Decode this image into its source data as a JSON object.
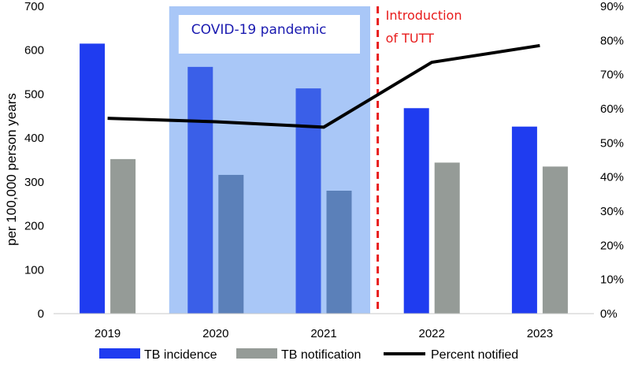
{
  "chart_data": {
    "type": "bar+line",
    "categories": [
      "2019",
      "2020",
      "2021",
      "2022",
      "2023"
    ],
    "series": [
      {
        "name": "TB incidence",
        "kind": "bar",
        "axis": "left",
        "color": "#1f3cf0",
        "values": [
          615,
          562,
          513,
          468,
          426
        ]
      },
      {
        "name": "TB notification",
        "kind": "bar",
        "axis": "left",
        "color": "#959b97",
        "values": [
          352,
          316,
          280,
          344,
          335
        ]
      },
      {
        "name": "Percent notified",
        "kind": "line",
        "axis": "right",
        "color": "#000000",
        "values": [
          57.2,
          56.2,
          54.6,
          73.6,
          78.5
        ]
      }
    ],
    "ylabel": "per 100,000 person years",
    "ylim": [
      0,
      700
    ],
    "yticks": [
      "0",
      "100",
      "200",
      "300",
      "400",
      "500",
      "600",
      "700"
    ],
    "y2lim": [
      0,
      90
    ],
    "y2ticks": [
      "0%",
      "10%",
      "20%",
      "30%",
      "40%",
      "50%",
      "60%",
      "70%",
      "80%",
      "90%"
    ],
    "annotations": {
      "covid": {
        "label": "COVID-19 pandemic",
        "from": "2020",
        "to": "2021",
        "shade_color": "#a9c7f7",
        "text_color": "#1a1ab0"
      },
      "tutt": {
        "line1": "Introduction",
        "line2": "of TUTT",
        "between": [
          "2021",
          "2022"
        ],
        "color": "#e81c1c"
      }
    },
    "legend_position": "bottom"
  }
}
